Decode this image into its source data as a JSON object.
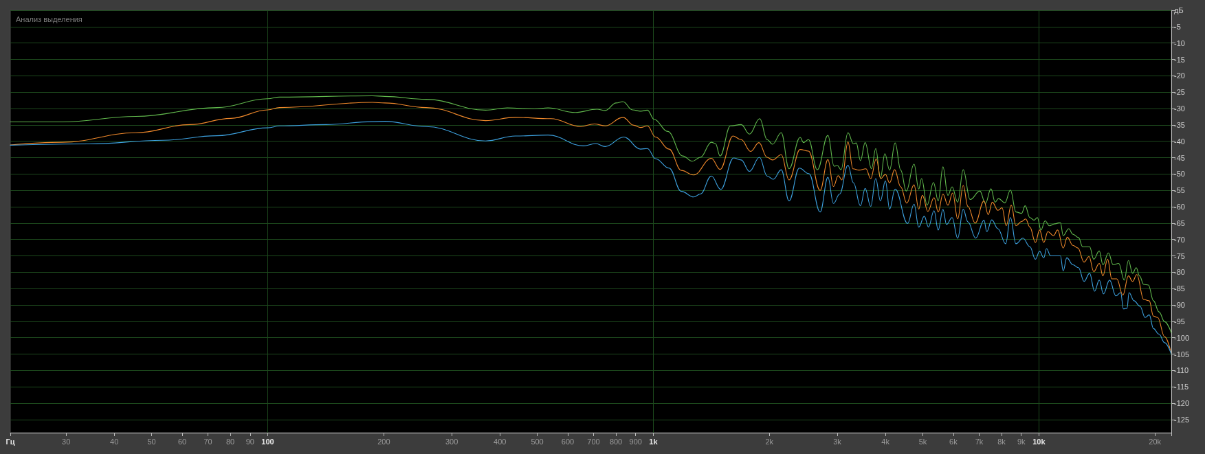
{
  "chart_data": {
    "type": "line",
    "title": "Анализ выделения",
    "log": "x",
    "grid": true,
    "marker": "none",
    "xlim": [
      21.5,
      22050
    ],
    "ylim": [
      -129,
      0
    ],
    "xticks": [
      {
        "value": 21.5,
        "label": "Гц"
      },
      30,
      40,
      50,
      60,
      70,
      80,
      90,
      100,
      200,
      300,
      400,
      500,
      600,
      700,
      800,
      900,
      {
        "value": 1000,
        "label": "1k"
      },
      {
        "value": 2000,
        "label": "2k"
      },
      {
        "value": 3000,
        "label": "3k"
      },
      {
        "value": 4000,
        "label": "4k"
      },
      {
        "value": 5000,
        "label": "5k"
      },
      {
        "value": 6000,
        "label": "6k"
      },
      {
        "value": 7000,
        "label": "7k"
      },
      {
        "value": 8000,
        "label": "8k"
      },
      {
        "value": 9000,
        "label": "9k"
      },
      {
        "value": 10000,
        "label": "10k"
      },
      {
        "value": 20000,
        "label": "20k"
      },
      {
        "value": 22050,
        "label": null
      }
    ],
    "yticks": [
      {
        "value": 0,
        "label": "дБ"
      },
      -5,
      -10,
      -15,
      -20,
      -25,
      -30,
      -35,
      -40,
      -45,
      -50,
      -55,
      -60,
      -65,
      -70,
      -75,
      -80,
      -85,
      -90,
      -95,
      -100,
      -105,
      -110,
      -115,
      -120,
      -125
    ],
    "series": [
      {
        "color": "#61b84d",
        "x": [
          21.5,
          29.3,
          45.5,
          73.8,
          100,
          107.3,
          186.9,
          201.2,
          257.5,
          367.1,
          418.1,
          491.7,
          533.3,
          627.6,
          714.5,
          750.4,
          800.9,
          834.1,
          882.8,
          926.9,
          965.4,
          1005,
          1090,
          1192,
          1262,
          1325,
          1414,
          1449,
          1490,
          1585,
          1690,
          1776,
          1888,
          1973,
          2038,
          2147,
          2249,
          2403,
          2452,
          2526,
          2663,
          2837,
          2943,
          3002,
          3067,
          3197,
          3305,
          3360,
          3445,
          3543,
          3681,
          3774,
          3882,
          3986,
          4100,
          4238,
          4381,
          4529,
          4744,
          4880,
          4962,
          5129,
          5328,
          5481,
          5638,
          5809,
          5955,
          6157,
          6364,
          6633,
          7029,
          7266,
          7510,
          7700,
          7855,
          8160,
          8436,
          8720,
          9016,
          9212,
          9475,
          9714,
          9908,
          10125,
          10380,
          10641,
          11000,
          11370,
          11561,
          11950,
          12252,
          12667,
          12987,
          13535,
          13875,
          14340,
          14654,
          15148,
          15581,
          16106,
          16649,
          17069,
          17500,
          17882,
          18232,
          18700,
          19234,
          19816,
          20492,
          21184,
          22050
        ],
        "values": [
          -34.1,
          -34.1,
          -32.4,
          -29.7,
          -27.0,
          -26.5,
          -26.1,
          -26.3,
          -27.2,
          -30.5,
          -29.8,
          -30.1,
          -29.8,
          -31.2,
          -30.2,
          -30.6,
          -28.3,
          -27.9,
          -30.4,
          -30.8,
          -30.5,
          -33.3,
          -37.0,
          -44.5,
          -46.1,
          -44.9,
          -40.3,
          -40.7,
          -44.5,
          -35.3,
          -34.9,
          -37.8,
          -33.1,
          -39.5,
          -40.9,
          -37.4,
          -48.4,
          -38.8,
          -40.4,
          -39.5,
          -48.7,
          -38.2,
          -47.6,
          -47.4,
          -48.7,
          -37.4,
          -40.8,
          -40.5,
          -45.9,
          -40.4,
          -48.4,
          -42.2,
          -51.2,
          -43.8,
          -48.8,
          -40.5,
          -48.8,
          -55.2,
          -47.0,
          -54.6,
          -51.4,
          -59.5,
          -52.6,
          -58.2,
          -47.8,
          -56.5,
          -53.9,
          -58.6,
          -48.7,
          -57.8,
          -55.2,
          -59.0,
          -54.5,
          -58.6,
          -57.5,
          -58.8,
          -54.9,
          -61.6,
          -62.0,
          -59.7,
          -63.3,
          -64.1,
          -63.3,
          -67.1,
          -64.3,
          -65.8,
          -65.2,
          -64.8,
          -68.8,
          -66.7,
          -68.4,
          -69.4,
          -72.2,
          -72.2,
          -76.0,
          -73.5,
          -77.7,
          -74.1,
          -77.7,
          -77.3,
          -82.4,
          -76.4,
          -80.3,
          -78.6,
          -81.1,
          -83.7,
          -83.9,
          -88.7,
          -92.1,
          -95.1,
          -98.5
        ]
      },
      {
        "color": "#f0892b",
        "x": [
          21.5,
          29.3,
          45.5,
          62.9,
          80.2,
          100,
          107.3,
          186.9,
          201.2,
          257.5,
          367.1,
          438.9,
          542.2,
          648.3,
          703.3,
          750.4,
          834.1,
          890.0,
          926.9,
          965.4,
          1013,
          1099,
          1182,
          1273,
          1414,
          1490,
          1610,
          1690,
          1789,
          1879,
          1973,
          2038,
          2147,
          2249,
          2403,
          2526,
          2708,
          2837,
          2933,
          3017,
          3083,
          3197,
          3294,
          3416,
          3561,
          3663,
          3786,
          3888,
          3999,
          4100,
          4224,
          4381,
          4543,
          4744,
          4880,
          4986,
          5154,
          5346,
          5481,
          5638,
          5809,
          5975,
          6157,
          6364,
          6545,
          6834,
          7206,
          7387,
          7573,
          7828,
          8025,
          8229,
          8477,
          8720,
          9016,
          9242,
          9475,
          9795,
          10041,
          10294,
          10553,
          10907,
          11183,
          11561,
          11852,
          12252,
          12624,
          13095,
          13490,
          13875,
          14340,
          14654,
          15072,
          15452,
          15921,
          16511,
          17069,
          17500,
          17940,
          18700,
          19328,
          19816,
          20323,
          21184,
          22050
        ],
        "values": [
          -41.1,
          -40.3,
          -37.4,
          -34.9,
          -33.0,
          -30.4,
          -29.7,
          -28.1,
          -28.3,
          -29.7,
          -33.7,
          -32.7,
          -33.1,
          -35.5,
          -34.7,
          -35.3,
          -32.7,
          -35.1,
          -35.8,
          -35.3,
          -38.7,
          -42.4,
          -48.9,
          -50.3,
          -45.2,
          -48.6,
          -38.4,
          -39.5,
          -43.1,
          -40.4,
          -44.9,
          -45.7,
          -44.1,
          -51.8,
          -42.5,
          -43.0,
          -55.0,
          -45.6,
          -53.8,
          -50.5,
          -51.8,
          -40.2,
          -48.4,
          -48.8,
          -48.4,
          -51.4,
          -45.3,
          -51.4,
          -50.1,
          -52.7,
          -48.7,
          -53.9,
          -58.9,
          -53.3,
          -60.7,
          -56.5,
          -61.4,
          -57.2,
          -61.6,
          -56.1,
          -59.5,
          -55.8,
          -63.7,
          -53.5,
          -59.9,
          -65.0,
          -58.2,
          -62.4,
          -58.6,
          -61.1,
          -60.3,
          -65.8,
          -59.5,
          -65.8,
          -64.5,
          -63.7,
          -66.2,
          -70.9,
          -67.1,
          -70.9,
          -67.6,
          -68.8,
          -67.1,
          -72.6,
          -69.3,
          -71.8,
          -72.6,
          -76.9,
          -75.2,
          -79.8,
          -77.3,
          -81.1,
          -76.0,
          -82.0,
          -82.0,
          -87.0,
          -81.1,
          -82.8,
          -80.7,
          -88.3,
          -88.7,
          -93.4,
          -93.8,
          -99.7,
          -104.9
        ]
      },
      {
        "color": "#3da2e0",
        "x": [
          21.5,
          34.4,
          53.4,
          73.8,
          100,
          107.3,
          141.6,
          186.9,
          201.2,
          257.5,
          367.1,
          438.9,
          533.3,
          659.0,
          708.8,
          750.4,
          838.3,
          926.9,
          965.4,
          1013,
          1099,
          1182,
          1273,
          1325,
          1414,
          1496,
          1615,
          1690,
          1776,
          1885,
          1973,
          2048,
          2147,
          2249,
          2391,
          2534,
          2708,
          2837,
          2933,
          3042,
          3197,
          3305,
          3445,
          3543,
          3663,
          3774,
          3882,
          3999,
          4100,
          4238,
          4566,
          4744,
          4880,
          5044,
          5171,
          5346,
          5481,
          5638,
          5761,
          5955,
          6157,
          6364,
          6545,
          6856,
          7206,
          7326,
          7548,
          7828,
          8200,
          8436,
          8720,
          9091,
          9475,
          9795,
          10041,
          10294,
          10466,
          10729,
          11370,
          11561,
          11813,
          12252,
          12667,
          13095,
          13535,
          13944,
          14340,
          14702,
          15250,
          15841,
          16296,
          16568,
          16928,
          17128,
          17646,
          18295,
          18856,
          19328,
          19816,
          20492,
          21184,
          22050
        ],
        "values": [
          -41.2,
          -40.8,
          -39.7,
          -38.3,
          -35.9,
          -35.3,
          -34.9,
          -34.0,
          -33.9,
          -35.5,
          -39.9,
          -38.4,
          -38.1,
          -41.4,
          -40.7,
          -41.6,
          -38.7,
          -42.4,
          -42.2,
          -45.3,
          -48.2,
          -55.3,
          -57.0,
          -56.1,
          -50.6,
          -54.7,
          -45.1,
          -45.7,
          -49.2,
          -44.9,
          -50.6,
          -51.6,
          -48.7,
          -58.2,
          -48.2,
          -49.9,
          -61.6,
          -51.0,
          -59.0,
          -56.1,
          -47.3,
          -52.7,
          -59.7,
          -54.4,
          -59.9,
          -51.4,
          -58.2,
          -52.1,
          -60.7,
          -54.6,
          -65.1,
          -59.2,
          -66.2,
          -62.9,
          -66.2,
          -61.2,
          -67.1,
          -60.8,
          -65.4,
          -63.3,
          -69.6,
          -60.8,
          -64.6,
          -69.6,
          -64.1,
          -67.6,
          -64.0,
          -66.7,
          -71.3,
          -63.3,
          -71.3,
          -69.6,
          -72.2,
          -76.0,
          -73.6,
          -75.6,
          -72.8,
          -75.0,
          -75.0,
          -79.6,
          -75.6,
          -77.7,
          -78.6,
          -82.8,
          -80.3,
          -85.8,
          -82.4,
          -86.6,
          -82.4,
          -87.2,
          -86.2,
          -91.2,
          -91.0,
          -86.2,
          -88.7,
          -90.4,
          -93.8,
          -93.0,
          -97.2,
          -98.9,
          -101.5,
          -105.0
        ]
      }
    ]
  }
}
